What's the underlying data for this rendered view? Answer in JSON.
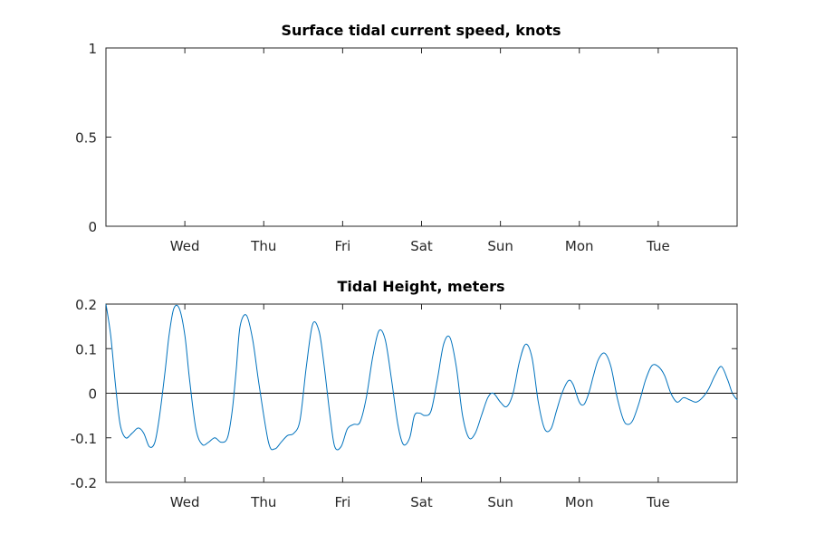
{
  "chart_data": [
    {
      "type": "line",
      "title": "Surface tidal current speed, knots",
      "xlabel": "",
      "ylabel": "",
      "x_tick_labels": [
        "Wed",
        "Thu",
        "Fri",
        "Sat",
        "Sun",
        "Mon",
        "Tue"
      ],
      "y_tick_labels": [
        "0",
        "0.5",
        "1"
      ],
      "y_ticks": [
        0,
        0.5,
        1
      ],
      "ylim": [
        0,
        1
      ],
      "xlim_days": [
        0,
        8
      ],
      "x_tick_days": [
        1,
        2,
        3,
        4,
        5,
        6,
        7
      ],
      "grid": false,
      "series": []
    },
    {
      "type": "line",
      "title": "Tidal Height, meters",
      "xlabel": "",
      "ylabel": "",
      "x_tick_labels": [
        "Wed",
        "Thu",
        "Fri",
        "Sat",
        "Sun",
        "Mon",
        "Tue"
      ],
      "y_tick_labels": [
        "-0.2",
        "-0.1",
        "0",
        "0.1",
        "0.2"
      ],
      "y_ticks": [
        -0.2,
        -0.1,
        0,
        0.1,
        0.2
      ],
      "ylim": [
        -0.2,
        0.2
      ],
      "xlim_days": [
        0,
        8
      ],
      "x_tick_days": [
        1,
        2,
        3,
        4,
        5,
        6,
        7
      ],
      "grid": false,
      "reference_line_y": 0,
      "line_color": "#0072BD",
      "series": [
        {
          "x": [
            0,
            0.06,
            0.12,
            0.18,
            0.25,
            0.33,
            0.41,
            0.48,
            0.55,
            0.62,
            0.68,
            0.75,
            0.8,
            0.86,
            0.93,
            1.0,
            1.06,
            1.14,
            1.22,
            1.3,
            1.38,
            1.46,
            1.54,
            1.6,
            1.65,
            1.7,
            1.78,
            1.86,
            1.94,
            2.06,
            2.14,
            2.22,
            2.3,
            2.38,
            2.46,
            2.54,
            2.62,
            2.7,
            2.76,
            2.84,
            2.9,
            2.98,
            3.06,
            3.14,
            3.22,
            3.3,
            3.38,
            3.46,
            3.54,
            3.62,
            3.7,
            3.77,
            3.85,
            3.91,
            3.98,
            4.04,
            4.12,
            4.2,
            4.28,
            4.36,
            4.44,
            4.52,
            4.6,
            4.68,
            4.76,
            4.84,
            4.91,
            5.0,
            5.08,
            5.16,
            5.24,
            5.32,
            5.4,
            5.48,
            5.56,
            5.64,
            5.71,
            5.78,
            5.86,
            5.92,
            6.0,
            6.06,
            6.12,
            6.18,
            6.24,
            6.32,
            6.4,
            6.48,
            6.56,
            6.62,
            6.68,
            6.76,
            6.84,
            6.92,
            7.0,
            7.08,
            7.16,
            7.24,
            7.32,
            7.4,
            7.48,
            7.56,
            7.64,
            7.72,
            7.8,
            7.88,
            7.94,
            8.0
          ],
          "y": [
            0.2,
            0.13,
            0.02,
            -0.07,
            -0.1,
            -0.09,
            -0.078,
            -0.09,
            -0.12,
            -0.11,
            -0.05,
            0.05,
            0.13,
            0.19,
            0.19,
            0.13,
            0.03,
            -0.08,
            -0.115,
            -0.11,
            -0.1,
            -0.11,
            -0.1,
            -0.04,
            0.05,
            0.15,
            0.175,
            0.12,
            0.02,
            -0.11,
            -0.125,
            -0.11,
            -0.095,
            -0.09,
            -0.06,
            0.06,
            0.155,
            0.14,
            0.07,
            -0.05,
            -0.12,
            -0.12,
            -0.08,
            -0.07,
            -0.065,
            -0.01,
            0.08,
            0.14,
            0.12,
            0.03,
            -0.07,
            -0.115,
            -0.1,
            -0.05,
            -0.045,
            -0.05,
            -0.04,
            0.03,
            0.11,
            0.125,
            0.06,
            -0.05,
            -0.1,
            -0.09,
            -0.05,
            -0.01,
            0.0,
            -0.02,
            -0.03,
            0.0,
            0.07,
            0.11,
            0.08,
            -0.02,
            -0.08,
            -0.08,
            -0.04,
            0.0,
            0.028,
            0.02,
            -0.02,
            -0.025,
            0.0,
            0.04,
            0.075,
            0.09,
            0.06,
            -0.01,
            -0.06,
            -0.07,
            -0.06,
            -0.02,
            0.03,
            0.062,
            0.06,
            0.04,
            0.0,
            -0.02,
            -0.01,
            -0.015,
            -0.02,
            -0.01,
            0.01,
            0.04,
            0.06,
            0.03,
            0.0,
            -0.015
          ]
        }
      ]
    }
  ]
}
